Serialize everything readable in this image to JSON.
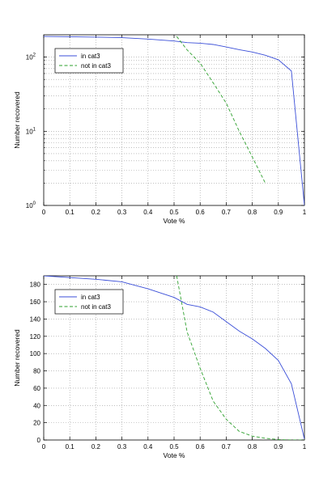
{
  "chart_data": [
    {
      "type": "line",
      "title": "",
      "xlabel": "Vote %",
      "ylabel": "Number recovered",
      "yscale": "log",
      "xlim": [
        0,
        1
      ],
      "ylim": [
        1,
        200
      ],
      "grid": true,
      "legend": "top-left",
      "x_ticks": [
        "0",
        "0.1",
        "0.2",
        "0.3",
        "0.4",
        "0.5",
        "0.6",
        "0.7",
        "0.8",
        "0.9",
        "1"
      ],
      "y_ticks": [
        {
          "base": "10",
          "exp": "0"
        },
        {
          "base": "10",
          "exp": "1"
        },
        {
          "base": "10",
          "exp": "2"
        }
      ],
      "series": [
        {
          "name": "in cat3",
          "color": "#3b4fd8",
          "style": "solid",
          "points": [
            [
              0,
              190
            ],
            [
              0.1,
              188
            ],
            [
              0.2,
              186
            ],
            [
              0.3,
              183
            ],
            [
              0.4,
              175
            ],
            [
              0.5,
              165
            ],
            [
              0.55,
              157
            ],
            [
              0.6,
              154
            ],
            [
              0.65,
              148
            ],
            [
              0.7,
              137
            ],
            [
              0.75,
              126
            ],
            [
              0.8,
              117
            ],
            [
              0.85,
              106
            ],
            [
              0.9,
              92
            ],
            [
              0.95,
              65
            ],
            [
              1,
              1
            ]
          ]
        },
        {
          "name": "not in cat3",
          "color": "#2ea02e",
          "style": "dashed",
          "points": [
            [
              0.51,
              190
            ],
            [
              0.55,
              125
            ],
            [
              0.6,
              83
            ],
            [
              0.65,
              45
            ],
            [
              0.7,
              24
            ],
            [
              0.75,
              10
            ],
            [
              0.8,
              4.5
            ],
            [
              0.85,
              2
            ]
          ]
        }
      ]
    },
    {
      "type": "line",
      "title": "",
      "xlabel": "Vote %",
      "ylabel": "Number recovered",
      "yscale": "linear",
      "xlim": [
        0,
        1
      ],
      "ylim": [
        0,
        190
      ],
      "grid": true,
      "legend": "top-left",
      "x_ticks": [
        "0",
        "0.1",
        "0.2",
        "0.3",
        "0.4",
        "0.5",
        "0.6",
        "0.7",
        "0.8",
        "0.9",
        "1"
      ],
      "y_ticks": [
        "0",
        "20",
        "40",
        "60",
        "80",
        "100",
        "120",
        "140",
        "160",
        "180"
      ],
      "series": [
        {
          "name": "in cat3",
          "color": "#3b4fd8",
          "style": "solid",
          "points": [
            [
              0,
              190
            ],
            [
              0.1,
              188
            ],
            [
              0.2,
              186
            ],
            [
              0.3,
              183
            ],
            [
              0.4,
              175
            ],
            [
              0.5,
              165
            ],
            [
              0.55,
              157
            ],
            [
              0.6,
              154
            ],
            [
              0.65,
              148
            ],
            [
              0.7,
              137
            ],
            [
              0.75,
              126
            ],
            [
              0.8,
              117
            ],
            [
              0.85,
              106
            ],
            [
              0.9,
              92
            ],
            [
              0.95,
              65
            ],
            [
              1,
              1
            ]
          ]
        },
        {
          "name": "not in cat3",
          "color": "#2ea02e",
          "style": "dashed",
          "points": [
            [
              0.51,
              190
            ],
            [
              0.55,
              125
            ],
            [
              0.6,
              83
            ],
            [
              0.65,
              45
            ],
            [
              0.7,
              24
            ],
            [
              0.75,
              10
            ],
            [
              0.8,
              4.5
            ],
            [
              0.85,
              2
            ],
            [
              0.9,
              0.5
            ],
            [
              0.95,
              0
            ],
            [
              1,
              0
            ]
          ]
        }
      ]
    }
  ]
}
